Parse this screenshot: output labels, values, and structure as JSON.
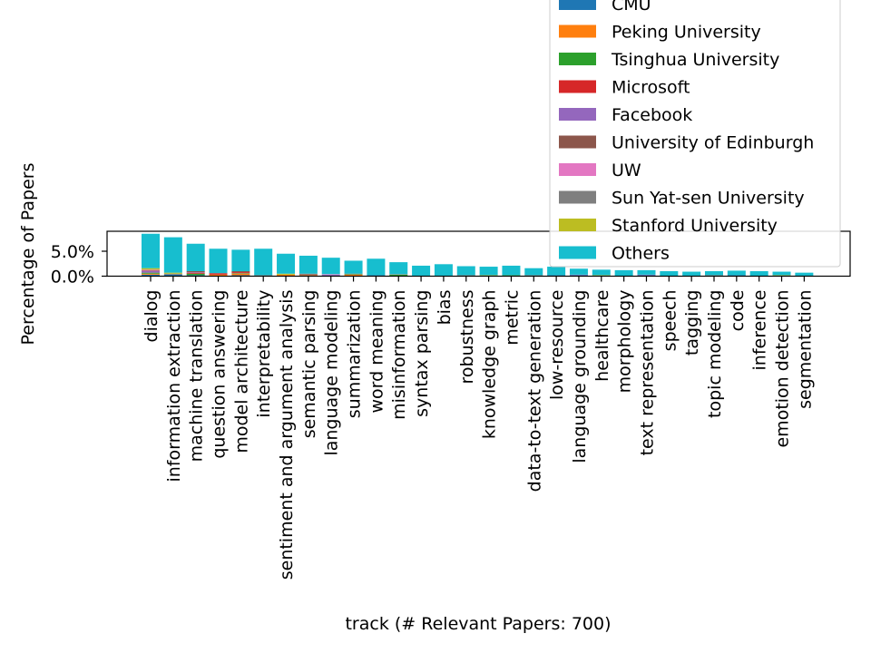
{
  "chart_data": {
    "type": "bar",
    "stacked": true,
    "xlabel": "track (# Relevant Papers: 700)",
    "ylabel": "Percentage of Papers",
    "ylim": [
      0,
      0.09
    ],
    "yticks": [
      {
        "value": 0.0,
        "label": "0.0%"
      },
      {
        "value": 0.05,
        "label": "5.0%"
      }
    ],
    "legend_position": "upper-right",
    "categories": [
      "dialog",
      "information extraction",
      "machine translation",
      "question answering",
      "model architecture",
      "interpretability",
      "sentiment and argument analysis",
      "semantic parsing",
      "language modeling",
      "summarization",
      "word meaning",
      "misinformation",
      "syntax parsing",
      "bias",
      "robustness",
      "knowledge graph",
      "metric",
      "data-to-text generation",
      "low-resource",
      "language grounding",
      "healthcare",
      "morphology",
      "text representation",
      "speech",
      "tagging",
      "topic modeling",
      "code",
      "inference",
      "emotion detection",
      "segmentation"
    ],
    "series": [
      {
        "name": "CMU",
        "color": "#1f77b4",
        "values": [
          0.003,
          0.003,
          0.002,
          0.0,
          0.002,
          0.0,
          0.0,
          0.001,
          0.001,
          0.0,
          0.002,
          0.0,
          0.001,
          0.001,
          0.0,
          0.0,
          0.001,
          0.0,
          0.002,
          0.002,
          0.0,
          0.0,
          0.002,
          0.0,
          0.001,
          0.0,
          0.002,
          0.0,
          0.0,
          0.0
        ]
      },
      {
        "name": "Peking University",
        "color": "#ff7f0e",
        "values": [
          0.002,
          0.0,
          0.0,
          0.003,
          0.003,
          0.0,
          0.003,
          0.001,
          0.0,
          0.003,
          0.0,
          0.0,
          0.0,
          0.0,
          0.0,
          0.001,
          0.0,
          0.001,
          0.0,
          0.0,
          0.0,
          0.0,
          0.0,
          0.0,
          0.0,
          0.0,
          0.0,
          0.0,
          0.001,
          0.0
        ]
      },
      {
        "name": "Tsinghua University",
        "color": "#2ca02c",
        "values": [
          0.002,
          0.0,
          0.003,
          0.0,
          0.001,
          0.001,
          0.0,
          0.0,
          0.0,
          0.001,
          0.0,
          0.003,
          0.0,
          0.0,
          0.001,
          0.0,
          0.001,
          0.0,
          0.0,
          0.0,
          0.001,
          0.0,
          0.0,
          0.0,
          0.0,
          0.0,
          0.0,
          0.0,
          0.0,
          0.0
        ]
      },
      {
        "name": "Microsoft",
        "color": "#d62728",
        "values": [
          0.0,
          0.0,
          0.002,
          0.003,
          0.002,
          0.0,
          0.0,
          0.0,
          0.0,
          0.0,
          0.0,
          0.0,
          0.0,
          0.0,
          0.0,
          0.0,
          0.0,
          0.0,
          0.0,
          0.0,
          0.0,
          0.0,
          0.0,
          0.0,
          0.0,
          0.0,
          0.0,
          0.0,
          0.0,
          0.0
        ]
      },
      {
        "name": "Facebook",
        "color": "#9467bd",
        "values": [
          0.003,
          0.0,
          0.001,
          0.0,
          0.0,
          0.0,
          0.0,
          0.0,
          0.002,
          0.0,
          0.0,
          0.0,
          0.0,
          0.0,
          0.0,
          0.0,
          0.0,
          0.0,
          0.0,
          0.001,
          0.0,
          0.0,
          0.001,
          0.0,
          0.0,
          0.0,
          0.0,
          0.0,
          0.0,
          0.0
        ]
      },
      {
        "name": "University of Edinburgh",
        "color": "#8c564b",
        "values": [
          0.001,
          0.0,
          0.002,
          0.0,
          0.002,
          0.0,
          0.0,
          0.002,
          0.0,
          0.001,
          0.0,
          0.0,
          0.0,
          0.0,
          0.0,
          0.0,
          0.0,
          0.0,
          0.0,
          0.0,
          0.0,
          0.0,
          0.0,
          0.0,
          0.0,
          0.001,
          0.0,
          0.0,
          0.0,
          0.0
        ]
      },
      {
        "name": "UW",
        "color": "#e377c2",
        "values": [
          0.002,
          0.0,
          0.0,
          0.0,
          0.0,
          0.0,
          0.0,
          0.0,
          0.001,
          0.0,
          0.0,
          0.0,
          0.0,
          0.0,
          0.0,
          0.0,
          0.0,
          0.0,
          0.0,
          0.0,
          0.0,
          0.0,
          0.0,
          0.0,
          0.0,
          0.0,
          0.0,
          0.0,
          0.0,
          0.0
        ]
      },
      {
        "name": "Sun Yat-sen University",
        "color": "#7f7f7f",
        "values": [
          0.0,
          0.002,
          0.0,
          0.0,
          0.0,
          0.001,
          0.0,
          0.001,
          0.0,
          0.0,
          0.0,
          0.001,
          0.0,
          0.0,
          0.001,
          0.0,
          0.0,
          0.001,
          0.0,
          0.0,
          0.0,
          0.0,
          0.0,
          0.0,
          0.0,
          0.001,
          0.0,
          0.0,
          0.0,
          0.001
        ]
      },
      {
        "name": "Stanford University",
        "color": "#bcbd22",
        "values": [
          0.003,
          0.002,
          0.0,
          0.0,
          0.0,
          0.0,
          0.002,
          0.0,
          0.0,
          0.0,
          0.0,
          0.0,
          0.0,
          0.0,
          0.0,
          0.001,
          0.0,
          0.0,
          0.0,
          0.0,
          0.001,
          0.0,
          0.0,
          0.0,
          0.0,
          0.0,
          0.0,
          0.0,
          0.001,
          0.0
        ]
      },
      {
        "name": "Others",
        "color": "#17becf",
        "values": [
          0.069,
          0.071,
          0.055,
          0.049,
          0.043,
          0.053,
          0.04,
          0.036,
          0.033,
          0.026,
          0.033,
          0.024,
          0.02,
          0.023,
          0.018,
          0.017,
          0.019,
          0.014,
          0.017,
          0.012,
          0.011,
          0.012,
          0.009,
          0.01,
          0.008,
          0.008,
          0.009,
          0.01,
          0.007,
          0.006
        ]
      }
    ]
  }
}
